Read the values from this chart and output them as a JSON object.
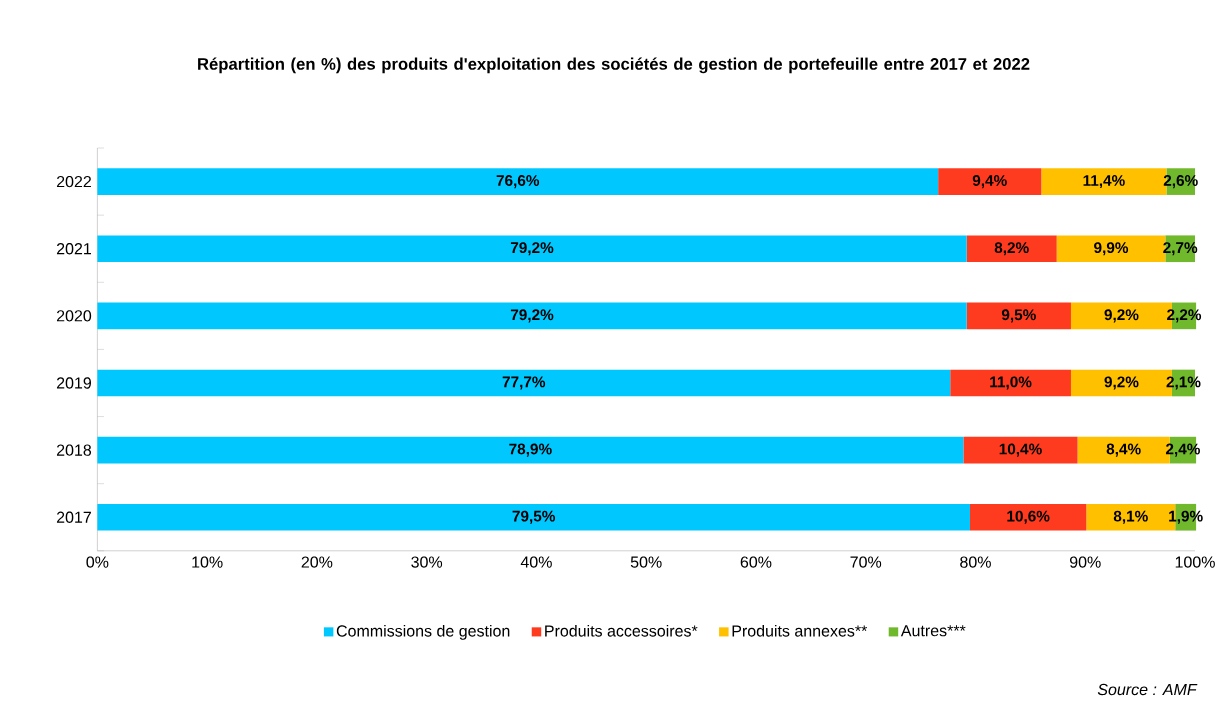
{
  "chart_data": {
    "type": "bar",
    "orientation": "horizontal",
    "stacked": true,
    "title": "Répartition (en %) des produits d'exploitation des sociétés de gestion de portefeuille entre 2017 et 2022",
    "categories": [
      "2022",
      "2021",
      "2020",
      "2019",
      "2018",
      "2017"
    ],
    "series": [
      {
        "name": "Commissions de gestion",
        "color": "#00c8ff",
        "values": [
          76.6,
          79.2,
          79.2,
          77.7,
          78.9,
          79.5
        ],
        "value_labels": [
          "76,6%",
          "79,2%",
          "79,2%",
          "77,7%",
          "78,9%",
          "79,5%"
        ]
      },
      {
        "name": "Produits accessoires*",
        "color": "#ff3b1f",
        "values": [
          9.4,
          8.2,
          9.5,
          11.0,
          10.4,
          10.6
        ],
        "value_labels": [
          "9,4%",
          "8,2%",
          "9,5%",
          "11,0%",
          "10,4%",
          "10,6%"
        ]
      },
      {
        "name": "Produits annexes**",
        "color": "#ffc000",
        "values": [
          11.4,
          9.9,
          9.2,
          9.2,
          8.4,
          8.1
        ],
        "value_labels": [
          "11,4%",
          "9,9%",
          "9,2%",
          "9,2%",
          "8,4%",
          "8,1%"
        ]
      },
      {
        "name": "Autres***",
        "color": "#70b92c",
        "values": [
          2.6,
          2.7,
          2.2,
          2.1,
          2.4,
          1.9
        ],
        "value_labels": [
          "2,6%",
          "2,7%",
          "2,2%",
          "2,1%",
          "2,4%",
          "1,9%"
        ]
      }
    ],
    "xlim": [
      0,
      100
    ],
    "xticks": [
      {
        "value": 0,
        "label": "0%"
      },
      {
        "value": 10,
        "label": "10%"
      },
      {
        "value": 20,
        "label": "20%"
      },
      {
        "value": 30,
        "label": "30%"
      },
      {
        "value": 40,
        "label": "40%"
      },
      {
        "value": 50,
        "label": "50%"
      },
      {
        "value": 60,
        "label": "60%"
      },
      {
        "value": 70,
        "label": "70%"
      },
      {
        "value": 80,
        "label": "80%"
      },
      {
        "value": 90,
        "label": "90%"
      },
      {
        "value": 100,
        "label": "100%"
      }
    ],
    "grid": false,
    "legend": "bottom",
    "annotations": [
      "*Source : AMF*"
    ]
  }
}
